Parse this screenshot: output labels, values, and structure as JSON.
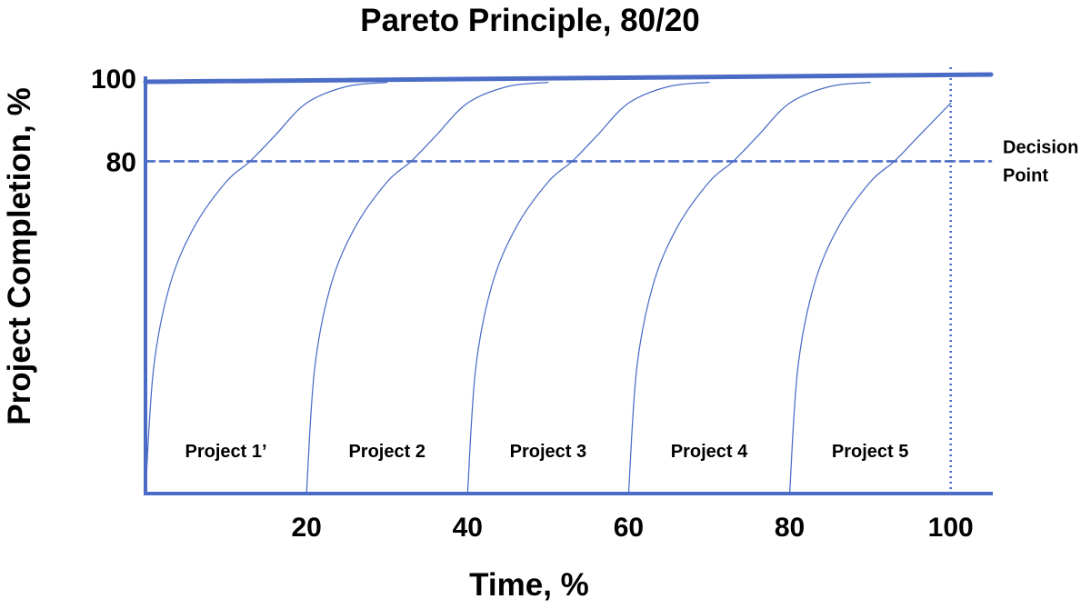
{
  "chart_data": {
    "type": "line",
    "title": "Pareto Principle, 80/20",
    "xlabel": "Time, %",
    "ylabel": "Project Completion, %",
    "xlim": [
      0,
      105
    ],
    "ylim": [
      0,
      100
    ],
    "x_ticks": [
      20,
      40,
      60,
      80,
      100
    ],
    "y_ticks": [
      80,
      100
    ],
    "grid": false,
    "colors": {
      "curves": "#4a6cc6",
      "axes": "#4a6cc6",
      "reference_lines": "#4a6cc6"
    },
    "series": [
      {
        "name": "Project 1’",
        "start": 0,
        "values": [
          {
            "x": 0,
            "y": 0
          },
          {
            "x": 1,
            "y": 30
          },
          {
            "x": 3,
            "y": 50
          },
          {
            "x": 6,
            "y": 64
          },
          {
            "x": 10,
            "y": 75
          },
          {
            "x": 13,
            "y": 80
          },
          {
            "x": 16,
            "y": 86
          },
          {
            "x": 20,
            "y": 94
          },
          {
            "x": 25,
            "y": 98
          },
          {
            "x": 30,
            "y": 99
          }
        ]
      },
      {
        "name": "Project 2",
        "start": 20,
        "values": [
          {
            "x": 20,
            "y": 0
          },
          {
            "x": 21,
            "y": 30
          },
          {
            "x": 23,
            "y": 50
          },
          {
            "x": 26,
            "y": 64
          },
          {
            "x": 30,
            "y": 75
          },
          {
            "x": 33,
            "y": 80
          },
          {
            "x": 36,
            "y": 86
          },
          {
            "x": 40,
            "y": 94
          },
          {
            "x": 45,
            "y": 98
          },
          {
            "x": 50,
            "y": 99
          }
        ]
      },
      {
        "name": "Project 3",
        "start": 40,
        "values": [
          {
            "x": 40,
            "y": 0
          },
          {
            "x": 41,
            "y": 30
          },
          {
            "x": 43,
            "y": 50
          },
          {
            "x": 46,
            "y": 64
          },
          {
            "x": 50,
            "y": 75
          },
          {
            "x": 53,
            "y": 80
          },
          {
            "x": 56,
            "y": 86
          },
          {
            "x": 60,
            "y": 94
          },
          {
            "x": 65,
            "y": 98
          },
          {
            "x": 70,
            "y": 99
          }
        ]
      },
      {
        "name": "Project 4",
        "start": 60,
        "values": [
          {
            "x": 60,
            "y": 0
          },
          {
            "x": 61,
            "y": 30
          },
          {
            "x": 63,
            "y": 50
          },
          {
            "x": 66,
            "y": 64
          },
          {
            "x": 70,
            "y": 75
          },
          {
            "x": 73,
            "y": 80
          },
          {
            "x": 76,
            "y": 86
          },
          {
            "x": 80,
            "y": 94
          },
          {
            "x": 85,
            "y": 98
          },
          {
            "x": 90,
            "y": 99
          }
        ]
      },
      {
        "name": "Project 5",
        "start": 80,
        "values": [
          {
            "x": 80,
            "y": 0
          },
          {
            "x": 81,
            "y": 30
          },
          {
            "x": 83,
            "y": 50
          },
          {
            "x": 86,
            "y": 64
          },
          {
            "x": 90,
            "y": 75
          },
          {
            "x": 93,
            "y": 80
          },
          {
            "x": 96,
            "y": 86
          },
          {
            "x": 100,
            "y": 94
          }
        ]
      }
    ],
    "reference_lines": [
      {
        "kind": "horizontal",
        "value": 80,
        "style": "dashed"
      },
      {
        "kind": "horizontal",
        "value": 100,
        "style": "solid"
      },
      {
        "kind": "vertical",
        "value": 100,
        "style": "dotted"
      }
    ],
    "annotations": [
      {
        "text_lines": [
          "Decision",
          "Point"
        ],
        "y": 80
      }
    ]
  }
}
